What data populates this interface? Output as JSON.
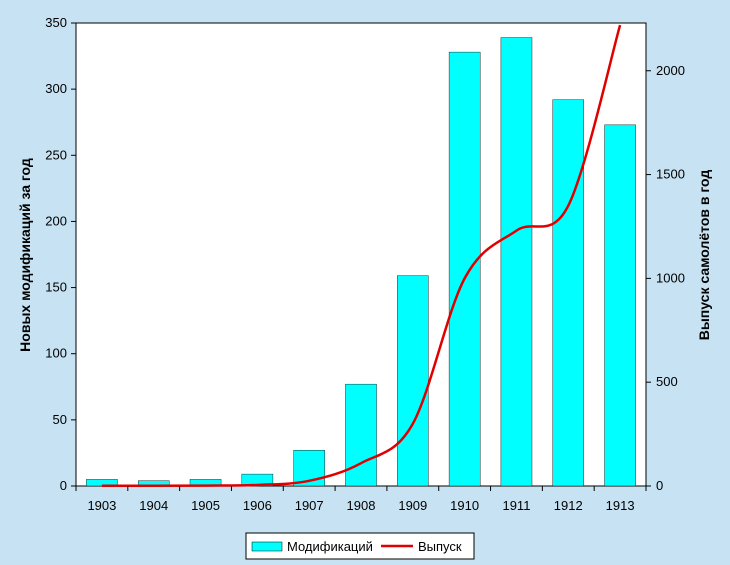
{
  "chart_data": {
    "type": "bar",
    "categories": [
      "1903",
      "1904",
      "1905",
      "1906",
      "1907",
      "1908",
      "1909",
      "1910",
      "1911",
      "1912",
      "1913"
    ],
    "series": [
      {
        "name": "Модификаций",
        "type": "bar",
        "axis": "left",
        "color": "#00FFFF",
        "values": [
          5,
          4,
          5,
          9,
          27,
          77,
          159,
          328,
          339,
          292,
          273
        ]
      },
      {
        "name": "Выпуск",
        "type": "line",
        "axis": "right",
        "color": "#E00000",
        "values": [
          1,
          1,
          2,
          5,
          25,
          110,
          300,
          1000,
          1230,
          1350,
          2220
        ]
      }
    ],
    "ylabel_left": "Новых модификаций за год",
    "ylabel_right": "Выпуск самолётов в год",
    "ylim_left": [
      0,
      350
    ],
    "ylim_right": [
      0,
      2230
    ],
    "yticks_left": [
      "0",
      "50",
      "100",
      "150",
      "200",
      "250",
      "300",
      "350"
    ],
    "yticks_right": [
      "0",
      "500",
      "1000",
      "1500",
      "2000"
    ],
    "legend_position": "bottom",
    "grid": false,
    "colors": {
      "background": "#C7E3F3",
      "plot_area": "#FFFFFF",
      "bar": "#00FFFF",
      "line": "#E00000"
    }
  }
}
